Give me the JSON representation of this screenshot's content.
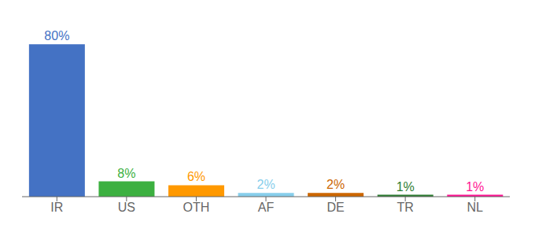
{
  "chart_data": {
    "type": "bar",
    "categories": [
      "IR",
      "US",
      "OTH",
      "AF",
      "DE",
      "TR",
      "NL"
    ],
    "values": [
      80,
      8,
      6,
      2,
      2,
      1,
      1
    ],
    "value_labels": [
      "80%",
      "8%",
      "6%",
      "2%",
      "2%",
      "1%",
      "1%"
    ],
    "colors": [
      "#4472C4",
      "#3CB040",
      "#FF9900",
      "#87CEEB",
      "#CC6600",
      "#2E7D32",
      "#FF1493"
    ],
    "ylim": [
      0,
      90
    ],
    "data_labels": true,
    "tick_labels": "x"
  }
}
